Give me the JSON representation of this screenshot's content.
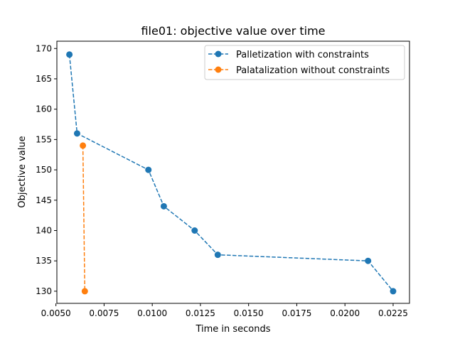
{
  "chart_data": {
    "type": "line",
    "title": "file01: objective value over time",
    "xlabel": "Time in seconds",
    "ylabel": "Objective value",
    "xlim": [
      0.00505,
      0.02335
    ],
    "ylim": [
      128.0,
      171.2
    ],
    "x_ticks": [
      "0.0050",
      "0.0075",
      "0.0100",
      "0.0125",
      "0.0150",
      "0.0175",
      "0.0200",
      "0.0225"
    ],
    "x_tick_values": [
      0.005,
      0.0075,
      0.01,
      0.0125,
      0.015,
      0.0175,
      0.02,
      0.0225
    ],
    "y_ticks": [
      "130",
      "135",
      "140",
      "145",
      "150",
      "155",
      "160",
      "165",
      "170"
    ],
    "y_tick_values": [
      130,
      135,
      140,
      145,
      150,
      155,
      160,
      165,
      170
    ],
    "legend_position": "top-right",
    "grid": false,
    "series": [
      {
        "name": "Palletization with constraints",
        "color": "#1f77b4",
        "line_style": "dashed",
        "marker": "circle",
        "x": [
          0.0057,
          0.0061,
          0.0098,
          0.0106,
          0.0122,
          0.0134,
          0.0212,
          0.0225
        ],
        "y": [
          169,
          156,
          150,
          144,
          140,
          136,
          135,
          130
        ]
      },
      {
        "name": "Palatalization without constraints",
        "color": "#ff7f0e",
        "line_style": "dashed",
        "marker": "circle",
        "x": [
          0.0064,
          0.0065
        ],
        "y": [
          154,
          130
        ]
      }
    ]
  }
}
